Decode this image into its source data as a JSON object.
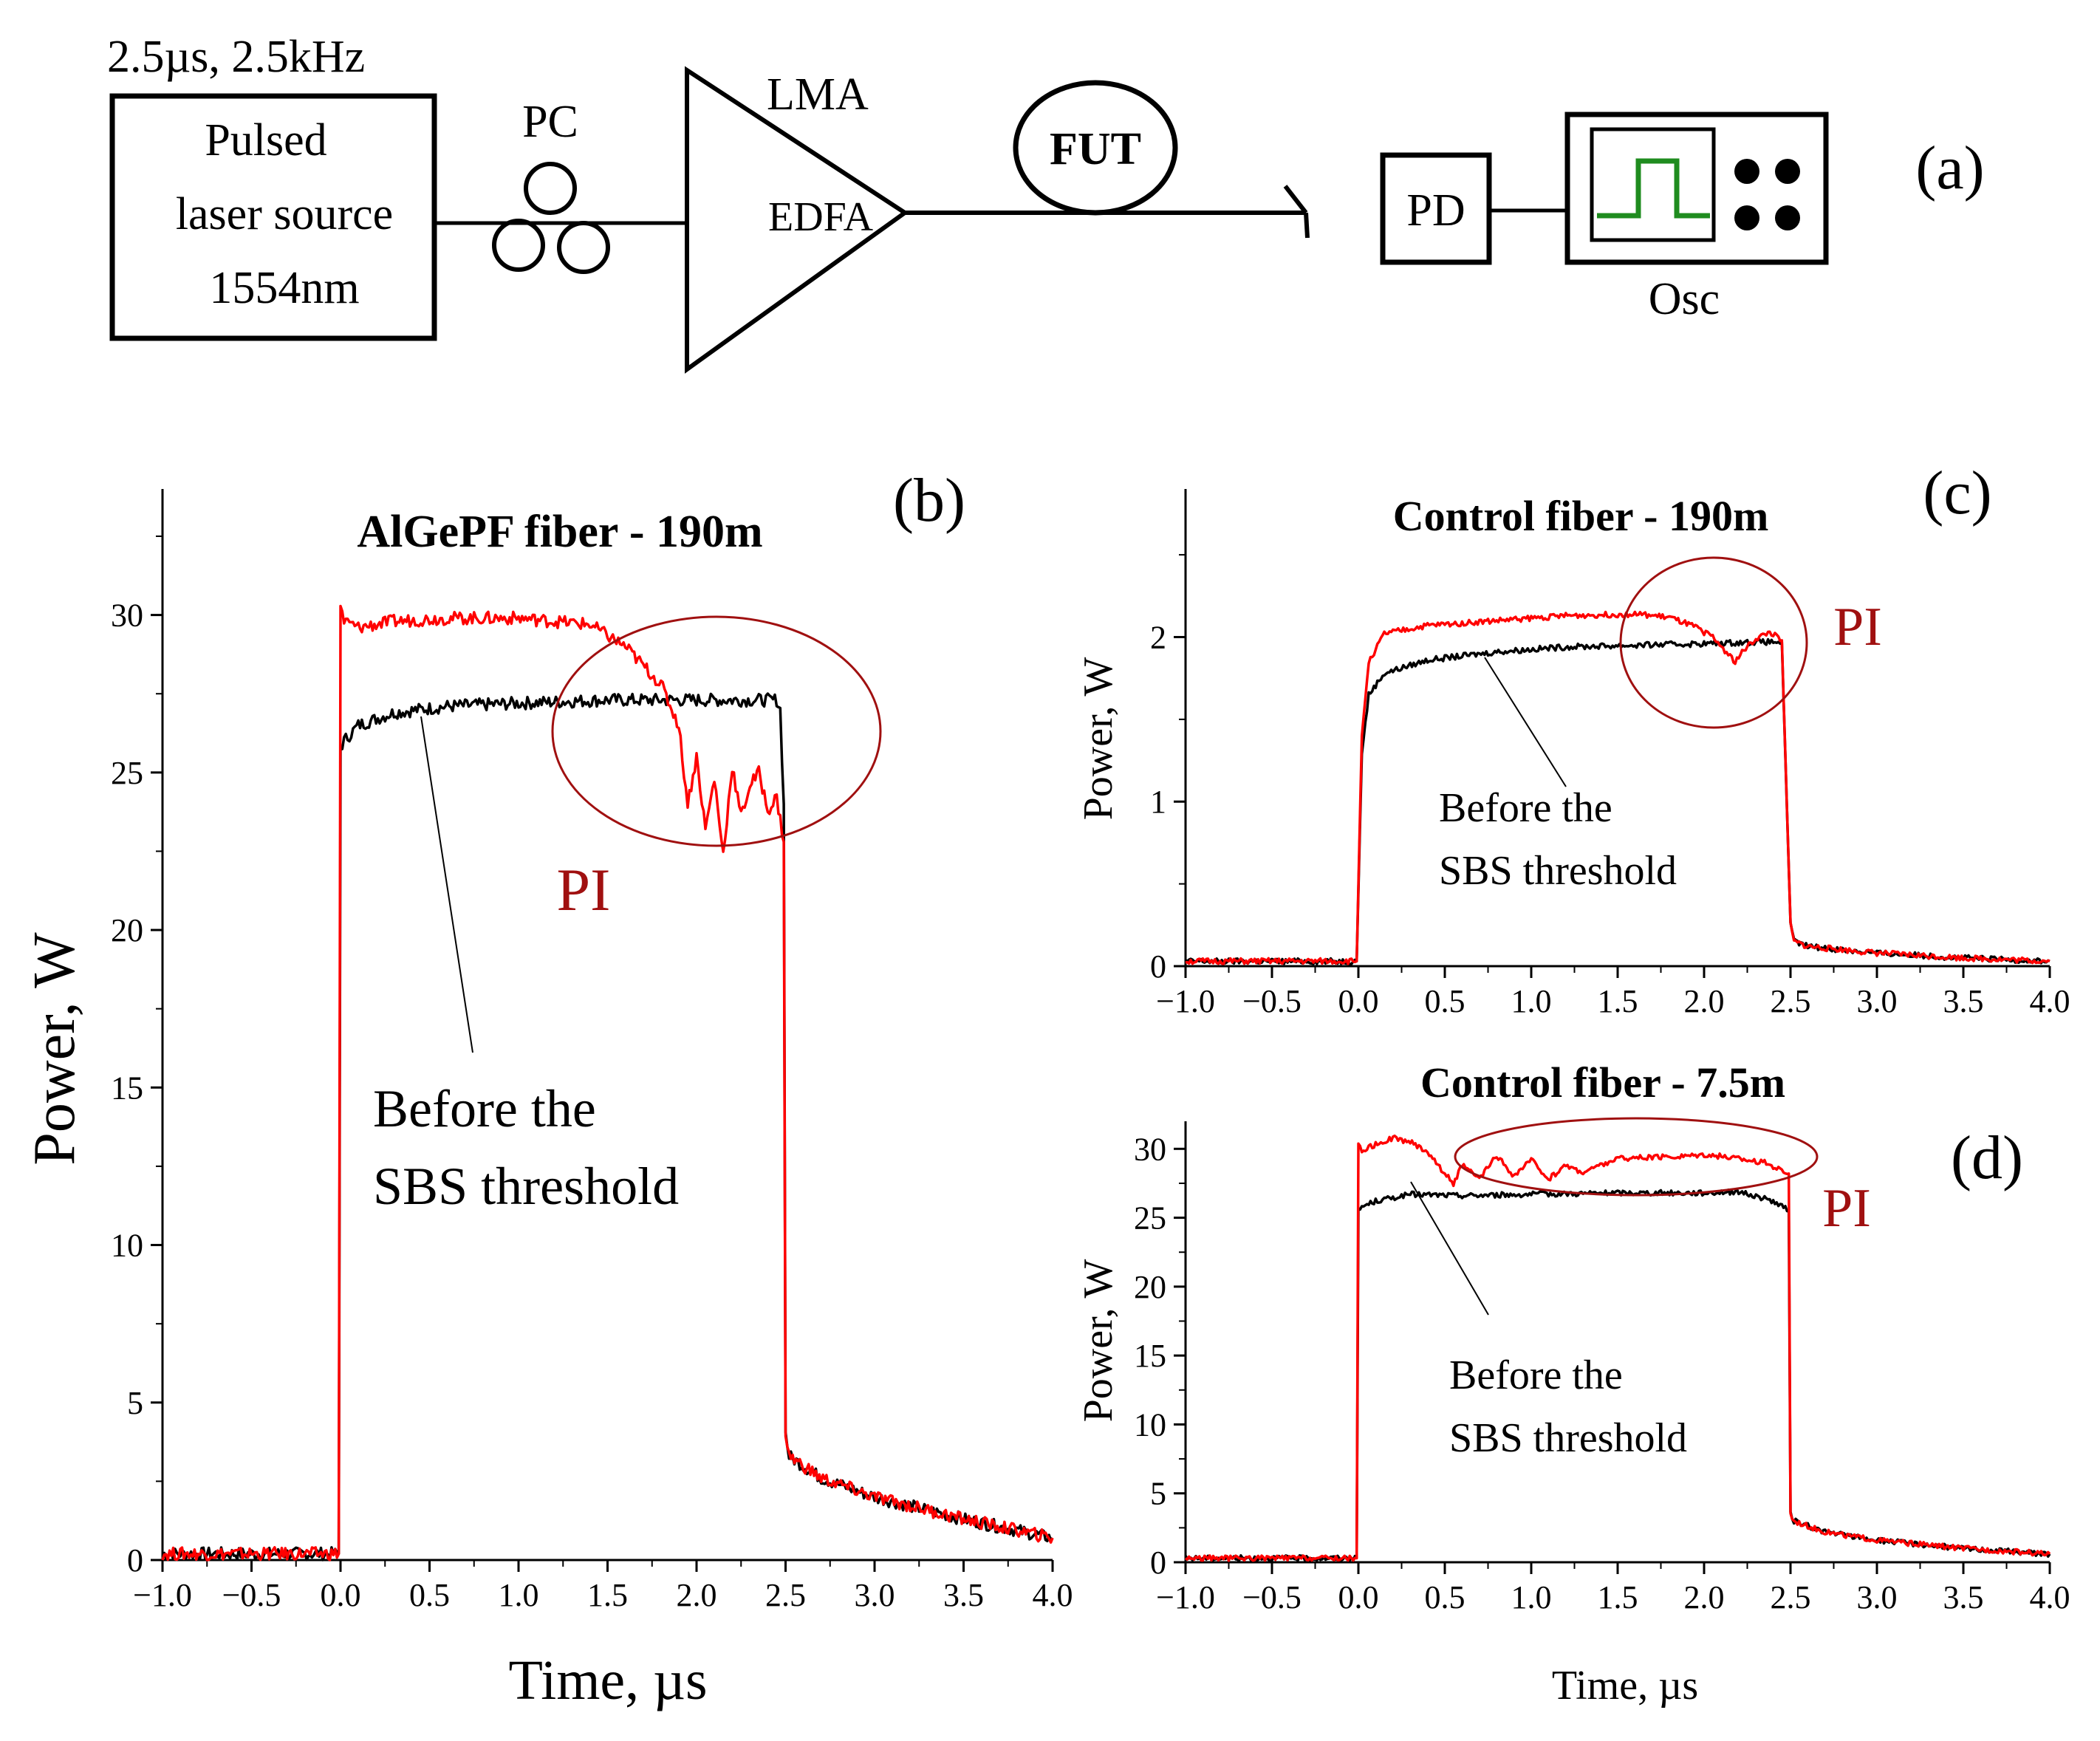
{
  "diagram": {
    "source_params": "2.5µs, 2.5kHz",
    "source_label": [
      "Pulsed",
      "laser source",
      "1554nm"
    ],
    "pc_label": "PC",
    "amp_top_label": "LMA",
    "amp_label": "EDFA",
    "fut_label": "FUT",
    "pd_label": "PD",
    "osc_label": "Osc",
    "panel_label": "(a)"
  },
  "chart_data": [
    {
      "id": "b",
      "type": "line",
      "panel_label": "(b)",
      "title": "AlGePF fiber - 190m",
      "xlabel": "Time, µs",
      "ylabel": "Power, W",
      "xlim": [
        -1.0,
        4.0
      ],
      "ylim": [
        0,
        34
      ],
      "xticks": [
        "−1.0",
        "−0.5",
        "0.0",
        "0.5",
        "1.0",
        "1.5",
        "2.0",
        "2.5",
        "3.0",
        "3.5",
        "4.0"
      ],
      "yticks": [
        "0",
        "5",
        "10",
        "15",
        "20",
        "25",
        "30"
      ],
      "annotation": [
        "Before the",
        "SBS threshold"
      ],
      "pi_label": "PI",
      "series": [
        {
          "name": "black",
          "color": "#000000",
          "x": [
            -1.0,
            -0.01,
            0.0,
            0.02,
            0.1,
            0.3,
            0.6,
            1.0,
            1.5,
            2.0,
            2.45,
            2.47,
            2.49,
            2.5,
            2.52,
            2.7,
            3.0,
            3.5,
            4.0
          ],
          "y": [
            0.2,
            0.2,
            25.8,
            26.0,
            26.5,
            26.9,
            27.1,
            27.2,
            27.3,
            27.3,
            27.3,
            27.0,
            24.0,
            4.0,
            3.3,
            2.6,
            2.0,
            1.3,
            0.7
          ]
        },
        {
          "name": "red",
          "color": "#ff0000",
          "x": [
            -1.0,
            -0.01,
            0.0,
            0.02,
            0.1,
            0.3,
            0.6,
            1.0,
            1.4,
            1.6,
            1.8,
            1.9,
            1.95,
            2.0,
            2.05,
            2.1,
            2.15,
            2.2,
            2.25,
            2.3,
            2.35,
            2.4,
            2.45,
            2.49,
            2.5,
            2.52,
            2.7,
            3.0,
            3.5,
            4.0
          ],
          "y": [
            0.2,
            0.2,
            30.3,
            29.8,
            29.6,
            29.8,
            29.9,
            29.9,
            29.7,
            29.0,
            27.8,
            26.5,
            24.0,
            25.5,
            23.2,
            24.8,
            22.4,
            25.2,
            23.6,
            24.6,
            25.0,
            23.8,
            24.2,
            22.8,
            4.0,
            3.3,
            2.6,
            2.0,
            1.3,
            0.7
          ]
        }
      ]
    },
    {
      "id": "c",
      "type": "line",
      "panel_label": "(c)",
      "title": "Control fiber - 190m",
      "xlabel": "",
      "ylabel": "Power, W",
      "xlim": [
        -1.0,
        4.0
      ],
      "ylim": [
        0,
        2.9
      ],
      "xticks": [
        "−1.0",
        "−0.5",
        "0.0",
        "0.5",
        "1.0",
        "1.5",
        "2.0",
        "2.5",
        "3.0",
        "3.5",
        "4.0"
      ],
      "yticks": [
        "0",
        "1",
        "2"
      ],
      "annotation": [
        "Before the",
        "SBS threshold"
      ],
      "pi_label": "PI",
      "series": [
        {
          "name": "black",
          "color": "#000000",
          "x": [
            -1.0,
            -0.01,
            0.02,
            0.06,
            0.15,
            0.4,
            0.8,
            1.2,
            1.6,
            2.0,
            2.3,
            2.45,
            2.5,
            2.52,
            2.6,
            3.0,
            3.5,
            4.0
          ],
          "y": [
            0.03,
            0.03,
            1.3,
            1.65,
            1.78,
            1.86,
            1.91,
            1.94,
            1.95,
            1.96,
            1.97,
            1.97,
            0.25,
            0.15,
            0.12,
            0.08,
            0.05,
            0.03
          ]
        },
        {
          "name": "red",
          "color": "#ff0000",
          "x": [
            -1.0,
            -0.01,
            0.02,
            0.06,
            0.15,
            0.4,
            0.8,
            1.2,
            1.6,
            1.8,
            1.95,
            2.05,
            2.12,
            2.18,
            2.23,
            2.3,
            2.38,
            2.45,
            2.5,
            2.52,
            2.6,
            3.0,
            3.5,
            4.0
          ],
          "y": [
            0.03,
            0.03,
            1.4,
            1.85,
            2.02,
            2.07,
            2.1,
            2.13,
            2.14,
            2.12,
            2.06,
            2.0,
            1.92,
            1.85,
            1.92,
            1.99,
            2.03,
            1.98,
            0.25,
            0.15,
            0.12,
            0.08,
            0.05,
            0.03
          ]
        }
      ]
    },
    {
      "id": "d",
      "type": "line",
      "panel_label": "(d)",
      "title": "Control fiber - 7.5m",
      "xlabel": "Time, µs",
      "ylabel": "Power, W",
      "xlim": [
        -1.0,
        4.0
      ],
      "ylim": [
        0,
        32
      ],
      "xticks": [
        "−1.0",
        "−0.5",
        "0.0",
        "0.5",
        "1.0",
        "1.5",
        "2.0",
        "2.5",
        "3.0",
        "3.5",
        "4.0"
      ],
      "yticks": [
        "0",
        "5",
        "10",
        "15",
        "20",
        "25",
        "30"
      ],
      "annotation": [
        "Before the",
        "SBS threshold"
      ],
      "pi_label": "PI",
      "series": [
        {
          "name": "black",
          "color": "#000000",
          "x": [
            -1.0,
            -0.01,
            0.0,
            0.02,
            0.1,
            0.3,
            0.6,
            1.0,
            1.5,
            2.0,
            2.2,
            2.4,
            2.49,
            2.5,
            2.52,
            2.7,
            3.0,
            3.5,
            4.0
          ],
          "y": [
            0.3,
            0.3,
            25.5,
            25.8,
            26.2,
            26.7,
            26.6,
            26.7,
            26.8,
            26.8,
            26.9,
            26.2,
            25.5,
            3.5,
            3.0,
            2.2,
            1.6,
            1.0,
            0.6
          ]
        },
        {
          "name": "red",
          "color": "#ff0000",
          "x": [
            -1.0,
            -0.01,
            0.0,
            0.02,
            0.1,
            0.2,
            0.3,
            0.4,
            0.5,
            0.55,
            0.6,
            0.7,
            0.8,
            0.9,
            1.0,
            1.1,
            1.2,
            1.3,
            1.5,
            1.8,
            2.0,
            2.2,
            2.35,
            2.49,
            2.5,
            2.52,
            2.7,
            3.0,
            3.5,
            4.0
          ],
          "y": [
            0.3,
            0.3,
            30.2,
            29.9,
            30.3,
            30.8,
            30.5,
            29.8,
            28.2,
            27.5,
            28.8,
            27.8,
            29.5,
            28.0,
            29.2,
            27.8,
            28.8,
            28.3,
            29.3,
            29.4,
            29.6,
            29.3,
            29.0,
            28.2,
            3.5,
            3.0,
            2.2,
            1.6,
            1.0,
            0.6
          ]
        }
      ]
    }
  ]
}
